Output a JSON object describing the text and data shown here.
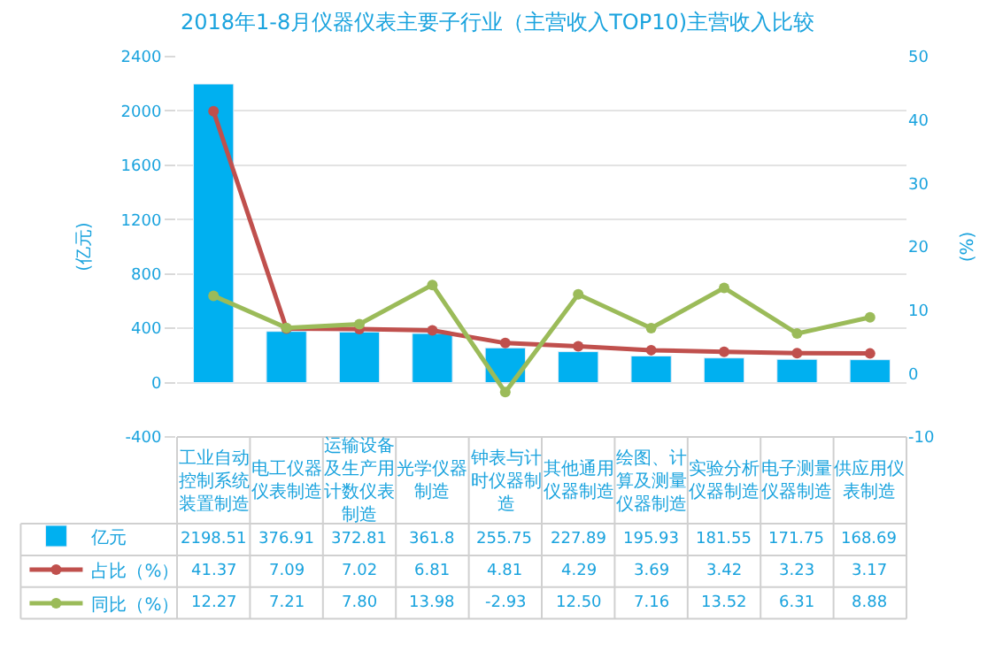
{
  "chart_data": {
    "type": "bar",
    "title": "2018年1-8月仪器仪表主要子行业（主营收入TOP10)主营收入比较",
    "ylabel": "(亿元)",
    "y2label": "(%)",
    "categories": [
      "工业自动控制系统装置制造",
      "电工仪器仪表制造",
      "运输设备及生产用计数仪表制造",
      "光学仪器制造",
      "钟表与计时仪器制造",
      "其他通用仪器制造",
      "绘图、计算及测量仪器制造",
      "实验分析仪器制造",
      "电子测量仪器制造",
      "供应用仪表制造"
    ],
    "series": [
      {
        "name": "亿元",
        "color": "#00b0f0",
        "values": [
          2198.51,
          376.91,
          372.81,
          361.8,
          255.75,
          227.89,
          195.93,
          181.55,
          171.75,
          168.69
        ],
        "value_labels": [
          "2198.51",
          "376.91",
          "372.81",
          "361.8",
          "255.75",
          "227.89",
          "195.93",
          "181.55",
          "171.75",
          "168.69"
        ]
      },
      {
        "name": "占比（%）",
        "type": "line",
        "axis": "y2",
        "color": "#c0504d",
        "marker": "circle",
        "values": [
          41.37,
          7.09,
          7.02,
          6.81,
          4.81,
          4.29,
          3.69,
          3.42,
          3.23,
          3.17
        ],
        "value_labels": [
          "41.37",
          "7.09",
          "7.02",
          "6.81",
          "4.81",
          "4.29",
          "3.69",
          "3.42",
          "3.23",
          "3.17"
        ]
      },
      {
        "name": "同比（%）",
        "type": "line",
        "axis": "y2",
        "color": "#9bbb59",
        "marker": "circle",
        "values": [
          12.27,
          7.21,
          7.8,
          13.98,
          -2.93,
          12.5,
          7.16,
          13.52,
          6.31,
          8.88
        ],
        "value_labels": [
          "12.27",
          "7.21",
          "7.80",
          "13.98",
          "-2.93",
          "12.50",
          "7.16",
          "13.52",
          "6.31",
          "8.88"
        ]
      }
    ],
    "ylim": [
      -400,
      2400
    ],
    "yticks": [
      -400,
      0,
      400,
      800,
      1200,
      1600,
      2000,
      2400
    ],
    "y2lim": [
      -10,
      50
    ],
    "y2ticks": [
      -10,
      0,
      10,
      20,
      30,
      40,
      50
    ],
    "grid": "y",
    "legend": "bottom left"
  }
}
